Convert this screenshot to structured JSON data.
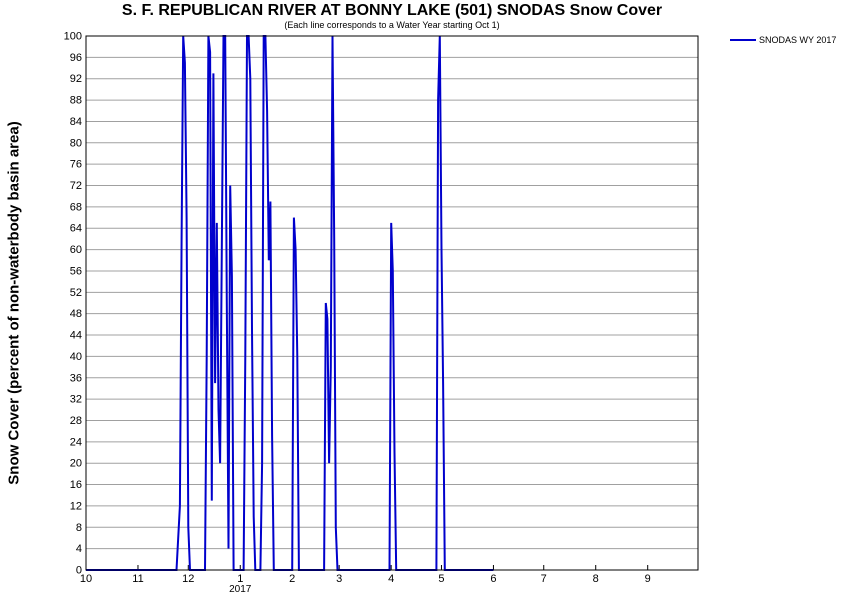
{
  "chart_data": {
    "type": "line",
    "title": "S. F. REPUBLICAN RIVER AT BONNY LAKE (501) SNODAS Snow Cover",
    "subtitle": "(Each line corresponds to a Water Year starting Oct 1)",
    "ylabel": "Snow Cover (percent of non-waterbody basin area)",
    "xlabel": "",
    "x_ticks": [
      "10",
      "11",
      "12",
      "1",
      "2",
      "3",
      "4",
      "5",
      "6",
      "7",
      "8",
      "9"
    ],
    "x_year_label": "2017",
    "x_range": [
      "2016-10-01",
      "2017-09-30"
    ],
    "y_ticks": [
      0,
      4,
      8,
      12,
      16,
      20,
      24,
      28,
      32,
      36,
      40,
      44,
      48,
      52,
      56,
      60,
      64,
      68,
      72,
      76,
      80,
      84,
      88,
      92,
      96,
      100
    ],
    "ylim": [
      0,
      100
    ],
    "grid": true,
    "legend_position": "top-right outside",
    "series": [
      {
        "name": "SNODAS WY 2017",
        "color": "#0000cc",
        "points": [
          [
            "2016-10-01",
            0
          ],
          [
            "2016-11-24",
            0
          ],
          [
            "2016-11-26",
            12
          ],
          [
            "2016-11-27",
            62
          ],
          [
            "2016-11-28",
            100
          ],
          [
            "2016-11-29",
            95
          ],
          [
            "2016-11-30",
            66
          ],
          [
            "2016-12-01",
            8
          ],
          [
            "2016-12-02",
            0
          ],
          [
            "2016-12-11",
            0
          ],
          [
            "2016-12-12",
            40
          ],
          [
            "2016-12-13",
            100
          ],
          [
            "2016-12-14",
            97
          ],
          [
            "2016-12-15",
            13
          ],
          [
            "2016-12-16",
            93
          ],
          [
            "2016-12-17",
            35
          ],
          [
            "2016-12-18",
            65
          ],
          [
            "2016-12-19",
            30
          ],
          [
            "2016-12-20",
            20
          ],
          [
            "2016-12-21",
            60
          ],
          [
            "2016-12-22",
            100
          ],
          [
            "2016-12-23",
            100
          ],
          [
            "2016-12-24",
            50
          ],
          [
            "2016-12-25",
            4
          ],
          [
            "2016-12-26",
            72
          ],
          [
            "2016-12-27",
            55
          ],
          [
            "2016-12-28",
            0
          ],
          [
            "2017-01-03",
            0
          ],
          [
            "2017-01-04",
            40
          ],
          [
            "2017-01-05",
            100
          ],
          [
            "2017-01-06",
            100
          ],
          [
            "2017-01-07",
            92
          ],
          [
            "2017-01-08",
            45
          ],
          [
            "2017-01-09",
            10
          ],
          [
            "2017-01-10",
            0
          ],
          [
            "2017-01-13",
            0
          ],
          [
            "2017-01-14",
            20
          ],
          [
            "2017-01-15",
            100
          ],
          [
            "2017-01-16",
            100
          ],
          [
            "2017-01-17",
            86
          ],
          [
            "2017-01-18",
            58
          ],
          [
            "2017-01-19",
            69
          ],
          [
            "2017-01-20",
            25
          ],
          [
            "2017-01-21",
            0
          ],
          [
            "2017-02-01",
            0
          ],
          [
            "2017-02-02",
            66
          ],
          [
            "2017-02-03",
            60
          ],
          [
            "2017-02-04",
            40
          ],
          [
            "2017-02-05",
            0
          ],
          [
            "2017-02-20",
            0
          ],
          [
            "2017-02-21",
            50
          ],
          [
            "2017-02-22",
            47
          ],
          [
            "2017-02-23",
            20
          ],
          [
            "2017-02-24",
            38
          ],
          [
            "2017-02-25",
            100
          ],
          [
            "2017-02-26",
            62
          ],
          [
            "2017-02-27",
            8
          ],
          [
            "2017-02-28",
            0
          ],
          [
            "2017-03-31",
            0
          ],
          [
            "2017-04-01",
            65
          ],
          [
            "2017-04-02",
            56
          ],
          [
            "2017-04-03",
            22
          ],
          [
            "2017-04-04",
            0
          ],
          [
            "2017-04-28",
            0
          ],
          [
            "2017-04-29",
            88
          ],
          [
            "2017-04-30",
            100
          ],
          [
            "2017-05-01",
            60
          ],
          [
            "2017-05-02",
            35
          ],
          [
            "2017-05-03",
            0
          ],
          [
            "2017-06-01",
            0
          ]
        ]
      }
    ]
  }
}
